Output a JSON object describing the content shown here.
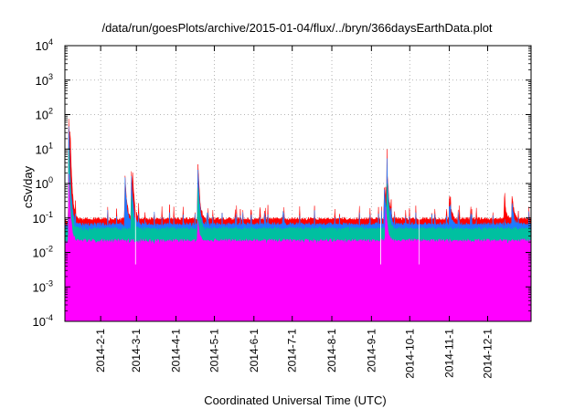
{
  "chart_data": {
    "type": "area",
    "title": "/data/run/goesPlots/archive/2015-01-04/flux/../bryn/366daysEarthData.plot",
    "xlabel": "Coordinated Universal Time (UTC)",
    "ylabel": "cSv/day",
    "yscale": "log",
    "ylim": [
      0.0001,
      10000
    ],
    "xlim": [
      "2014-01-04",
      "2015-01-04"
    ],
    "grid": true,
    "legend": "none",
    "x_ticks": [
      "2014-2-1",
      "2014-3-1",
      "2014-4-1",
      "2014-5-1",
      "2014-6-1",
      "2014-7-1",
      "2014-8-1",
      "2014-9-1",
      "2014-10-1",
      "2014-11-1",
      "2014-12-1"
    ],
    "y_ticks": [
      {
        "value": 0.0001,
        "mant": "10",
        "exp": "-4"
      },
      {
        "value": 0.001,
        "mant": "10",
        "exp": "-3"
      },
      {
        "value": 0.01,
        "mant": "10",
        "exp": "-2"
      },
      {
        "value": 0.1,
        "mant": "10",
        "exp": "-1"
      },
      {
        "value": 1,
        "mant": "10",
        "exp": "0"
      },
      {
        "value": 10,
        "mant": "10",
        "exp": "1"
      },
      {
        "value": 100,
        "mant": "10",
        "exp": "2"
      },
      {
        "value": 1000,
        "mant": "10",
        "exp": "3"
      },
      {
        "value": 10000,
        "mant": "10",
        "exp": "4"
      }
    ],
    "series": [
      {
        "color": "#ff0000",
        "baseline": 0.085,
        "peaks": [
          [
            "2014-01-07",
            120
          ],
          [
            "2014-01-08",
            60
          ],
          [
            "2014-02-20",
            2.2
          ],
          [
            "2014-02-25",
            3.2
          ],
          [
            "2014-02-26",
            2.5
          ],
          [
            "2014-04-18",
            6.5
          ],
          [
            "2014-09-11",
            1.2
          ],
          [
            "2014-09-12",
            1.0
          ],
          [
            "2014-09-13",
            6.0
          ],
          [
            "2014-11-01",
            0.6
          ],
          [
            "2014-12-14",
            0.4
          ],
          [
            "2014-12-20",
            0.5
          ]
        ]
      },
      {
        "color": "#1e7bff",
        "baseline": 0.06,
        "peaks": [
          [
            "2014-01-07",
            70
          ],
          [
            "2014-02-20",
            1.8
          ],
          [
            "2014-02-25",
            1.8
          ],
          [
            "2014-04-18",
            4.0
          ],
          [
            "2014-09-11",
            0.8
          ],
          [
            "2014-09-13",
            4.0
          ],
          [
            "2014-11-01",
            0.3
          ],
          [
            "2014-12-20",
            0.3
          ]
        ]
      },
      {
        "color": "#00c0a0",
        "baseline": 0.045,
        "peaks": [
          [
            "2014-01-07",
            20
          ],
          [
            "2014-02-25",
            0.6
          ],
          [
            "2014-04-18",
            1.0
          ],
          [
            "2014-09-13",
            1.5
          ]
        ]
      },
      {
        "color": "#ff00ff",
        "baseline": 0.02,
        "peaks": [
          [
            "2014-01-07",
            2.5
          ],
          [
            "2014-04-18",
            0.1
          ],
          [
            "2014-09-12",
            0.3
          ]
        ]
      }
    ]
  }
}
